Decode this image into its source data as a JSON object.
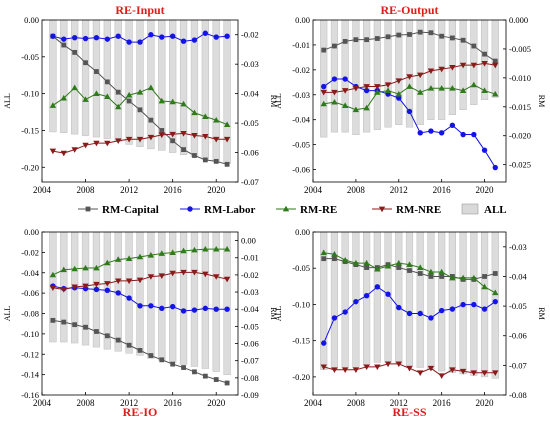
{
  "legend": {
    "items": [
      {
        "label": "RM-Capital",
        "color": "#555555",
        "marker": "square"
      },
      {
        "label": "RM-Labor",
        "color": "#1414e6",
        "marker": "circle"
      },
      {
        "label": "RM-RE",
        "color": "#2f7a1a",
        "marker": "triangle-up"
      },
      {
        "label": "RM-NRE",
        "color": "#8b1a1a",
        "marker": "triangle-down"
      },
      {
        "label": "ALL",
        "color": "#d9d9d9",
        "marker": "box"
      }
    ]
  },
  "chart_data": [
    {
      "type": "bar",
      "title": "RE-Input",
      "title_color": "#e01b1b",
      "title_position": "top",
      "ylabel_left": "ALL",
      "ylabel_right": "RM",
      "years": [
        2005,
        2006,
        2007,
        2008,
        2009,
        2010,
        2011,
        2012,
        2013,
        2014,
        2015,
        2016,
        2017,
        2018,
        2019,
        2020,
        2021
      ],
      "x_ticks": [
        2004,
        2008,
        2012,
        2016,
        2020
      ],
      "xlim": [
        2004,
        2022
      ],
      "left_ylim": [
        -0.22,
        0.0
      ],
      "left_ticks": [
        0.0,
        -0.05,
        -0.1,
        -0.15,
        -0.2
      ],
      "right_ylim": [
        -0.07,
        -0.015
      ],
      "right_ticks": [
        -0.02,
        -0.03,
        -0.04,
        -0.05,
        -0.06,
        -0.07
      ],
      "bars": {
        "name": "ALL",
        "values": [
          -0.152,
          -0.153,
          -0.155,
          -0.157,
          -0.159,
          -0.161,
          -0.165,
          -0.169,
          -0.172,
          -0.175,
          -0.177,
          -0.18,
          -0.183,
          -0.186,
          -0.189,
          -0.192,
          -0.195
        ]
      },
      "series": [
        {
          "name": "RM-Capital",
          "values": [
            -0.0205,
            -0.0235,
            -0.026,
            -0.0295,
            -0.0325,
            -0.036,
            -0.0395,
            -0.0425,
            -0.0455,
            -0.049,
            -0.0525,
            -0.056,
            -0.059,
            -0.061,
            -0.0625,
            -0.063,
            -0.064
          ]
        },
        {
          "name": "RM-Labor",
          "values": [
            -0.0205,
            -0.0215,
            -0.021,
            -0.0213,
            -0.021,
            -0.0215,
            -0.0205,
            -0.0225,
            -0.0225,
            -0.02,
            -0.0208,
            -0.0205,
            -0.0222,
            -0.0218,
            -0.0195,
            -0.0208,
            -0.0205
          ]
        },
        {
          "name": "RM-RE",
          "values": [
            -0.044,
            -0.0415,
            -0.038,
            -0.042,
            -0.04,
            -0.041,
            -0.0445,
            -0.0405,
            -0.0395,
            -0.038,
            -0.0425,
            -0.0428,
            -0.0435,
            -0.0465,
            -0.0478,
            -0.049,
            -0.0505
          ]
        },
        {
          "name": "RM-NRE",
          "values": [
            -0.0595,
            -0.0602,
            -0.059,
            -0.0575,
            -0.0568,
            -0.0568,
            -0.056,
            -0.0555,
            -0.0555,
            -0.0548,
            -0.054,
            -0.0538,
            -0.0535,
            -0.0542,
            -0.0545,
            -0.0555,
            -0.0555
          ]
        }
      ]
    },
    {
      "type": "bar",
      "title": "RE-Output",
      "title_color": "#e01b1b",
      "title_position": "top",
      "ylabel_left": "ALL",
      "ylabel_right": "RM",
      "years": [
        2005,
        2006,
        2007,
        2008,
        2009,
        2010,
        2011,
        2012,
        2013,
        2014,
        2015,
        2016,
        2017,
        2018,
        2019,
        2020,
        2021
      ],
      "x_ticks": [
        2004,
        2008,
        2012,
        2016,
        2020
      ],
      "xlim": [
        2004,
        2022
      ],
      "left_ylim": [
        -0.065,
        0.0
      ],
      "left_ticks": [
        0.0,
        -0.01,
        -0.02,
        -0.03,
        -0.04,
        -0.05,
        -0.06
      ],
      "right_ylim": [
        -0.028,
        0.0
      ],
      "right_ticks": [
        0.0,
        -0.005,
        -0.01,
        -0.015,
        -0.02,
        -0.025
      ],
      "bars": {
        "name": "ALL",
        "values": [
          -0.047,
          -0.045,
          -0.045,
          -0.046,
          -0.045,
          -0.044,
          -0.043,
          -0.042,
          -0.043,
          -0.042,
          -0.04,
          -0.04,
          -0.038,
          -0.036,
          -0.034,
          -0.032,
          -0.031
        ]
      },
      "series": [
        {
          "name": "RM-Capital",
          "values": [
            -0.0052,
            -0.0045,
            -0.0037,
            -0.0034,
            -0.0034,
            -0.0032,
            -0.0029,
            -0.0026,
            -0.0025,
            -0.0021,
            -0.0022,
            -0.0028,
            -0.0031,
            -0.0035,
            -0.0045,
            -0.0059,
            -0.0071
          ]
        },
        {
          "name": "RM-Labor",
          "values": [
            -0.0115,
            -0.0102,
            -0.0102,
            -0.0115,
            -0.0122,
            -0.0122,
            -0.0128,
            -0.0135,
            -0.0158,
            -0.0195,
            -0.0192,
            -0.0195,
            -0.0182,
            -0.0198,
            -0.0198,
            -0.0225,
            -0.0255
          ]
        },
        {
          "name": "RM-RE",
          "values": [
            -0.0145,
            -0.0142,
            -0.0148,
            -0.0155,
            -0.0152,
            -0.0125,
            -0.0122,
            -0.0128,
            -0.0115,
            -0.0125,
            -0.0118,
            -0.0118,
            -0.0118,
            -0.0122,
            -0.0112,
            -0.0122,
            -0.0128
          ]
        },
        {
          "name": "RM-NRE",
          "values": [
            -0.0125,
            -0.0125,
            -0.0122,
            -0.0118,
            -0.0115,
            -0.0115,
            -0.0112,
            -0.0105,
            -0.0098,
            -0.0095,
            -0.0088,
            -0.0085,
            -0.0082,
            -0.0078,
            -0.0078,
            -0.0075,
            -0.0078
          ]
        }
      ]
    },
    {
      "type": "bar",
      "title": "RE-IO",
      "title_color": "#e01b1b",
      "title_position": "bottom",
      "ylabel_left": "ALL",
      "ylabel_right": "RM",
      "years": [
        2005,
        2006,
        2007,
        2008,
        2009,
        2010,
        2011,
        2012,
        2013,
        2014,
        2015,
        2016,
        2017,
        2018,
        2019,
        2020,
        2021
      ],
      "x_ticks": [
        2004,
        2008,
        2012,
        2016,
        2020
      ],
      "xlim": [
        2004,
        2022
      ],
      "left_ylim": [
        -0.16,
        0.0
      ],
      "left_ticks": [
        0.0,
        -0.02,
        -0.04,
        -0.06,
        -0.08,
        -0.1,
        -0.12,
        -0.14,
        -0.16
      ],
      "right_ylim": [
        -0.09,
        0.005
      ],
      "right_ticks": [
        0.0,
        -0.01,
        -0.02,
        -0.03,
        -0.04,
        -0.05,
        -0.06,
        -0.07,
        -0.08,
        -0.09
      ],
      "bars": {
        "name": "ALL",
        "values": [
          -0.108,
          -0.108,
          -0.109,
          -0.111,
          -0.113,
          -0.115,
          -0.117,
          -0.119,
          -0.121,
          -0.124,
          -0.126,
          -0.128,
          -0.13,
          -0.132,
          -0.134,
          -0.137,
          -0.14
        ]
      },
      "series": [
        {
          "name": "RM-Capital",
          "values": [
            -0.0465,
            -0.0475,
            -0.049,
            -0.0505,
            -0.053,
            -0.0555,
            -0.058,
            -0.061,
            -0.064,
            -0.067,
            -0.0695,
            -0.072,
            -0.074,
            -0.0765,
            -0.079,
            -0.081,
            -0.083
          ]
        },
        {
          "name": "RM-Labor",
          "values": [
            -0.0265,
            -0.028,
            -0.0275,
            -0.028,
            -0.0285,
            -0.029,
            -0.0305,
            -0.0335,
            -0.038,
            -0.038,
            -0.0395,
            -0.0385,
            -0.041,
            -0.0405,
            -0.0395,
            -0.04,
            -0.04
          ]
        },
        {
          "name": "RM-RE",
          "values": [
            -0.02,
            -0.017,
            -0.0165,
            -0.016,
            -0.016,
            -0.013,
            -0.011,
            -0.0105,
            -0.0095,
            -0.0085,
            -0.0075,
            -0.007,
            -0.006,
            -0.0055,
            -0.005,
            -0.005,
            -0.005
          ]
        },
        {
          "name": "RM-NRE",
          "values": [
            -0.0275,
            -0.0285,
            -0.027,
            -0.0265,
            -0.0255,
            -0.025,
            -0.0235,
            -0.0235,
            -0.023,
            -0.021,
            -0.0205,
            -0.019,
            -0.0185,
            -0.0185,
            -0.0195,
            -0.021,
            -0.0225
          ]
        }
      ]
    },
    {
      "type": "bar",
      "title": "RE-SS",
      "title_color": "#e01b1b",
      "title_position": "bottom",
      "ylabel_left": "ALL",
      "ylabel_right": "RM",
      "years": [
        2005,
        2006,
        2007,
        2008,
        2009,
        2010,
        2011,
        2012,
        2013,
        2014,
        2015,
        2016,
        2017,
        2018,
        2019,
        2020,
        2021
      ],
      "x_ticks": [
        2004,
        2008,
        2012,
        2016,
        2020
      ],
      "xlim": [
        2004,
        2022
      ],
      "left_ylim": [
        -0.225,
        0.0
      ],
      "left_ticks": [
        0.0,
        -0.05,
        -0.1,
        -0.15,
        -0.2
      ],
      "right_ylim": [
        -0.08,
        -0.025
      ],
      "right_ticks": [
        -0.03,
        -0.04,
        -0.05,
        -0.06,
        -0.07,
        -0.08
      ],
      "bars": {
        "name": "ALL",
        "values": [
          -0.19,
          -0.19,
          -0.188,
          -0.187,
          -0.184,
          -0.18,
          -0.18,
          -0.182,
          -0.185,
          -0.187,
          -0.19,
          -0.192,
          -0.194,
          -0.196,
          -0.198,
          -0.2,
          -0.202
        ]
      },
      "series": [
        {
          "name": "RM-Capital",
          "values": [
            -0.034,
            -0.034,
            -0.035,
            -0.036,
            -0.037,
            -0.037,
            -0.036,
            -0.037,
            -0.038,
            -0.039,
            -0.04,
            -0.04,
            -0.04,
            -0.041,
            -0.041,
            -0.04,
            -0.039
          ]
        },
        {
          "name": "RM-Labor",
          "values": [
            -0.0625,
            -0.054,
            -0.052,
            -0.0485,
            -0.0465,
            -0.0435,
            -0.046,
            -0.0505,
            -0.0525,
            -0.0525,
            -0.054,
            -0.0515,
            -0.051,
            -0.0495,
            -0.0495,
            -0.051,
            -0.0485
          ]
        },
        {
          "name": "RM-RE",
          "values": [
            -0.032,
            -0.0325,
            -0.0345,
            -0.0355,
            -0.0355,
            -0.0375,
            -0.0365,
            -0.0355,
            -0.036,
            -0.037,
            -0.0385,
            -0.0385,
            -0.0405,
            -0.0405,
            -0.0405,
            -0.0435,
            -0.0455
          ]
        },
        {
          "name": "RM-NRE",
          "values": [
            -0.0705,
            -0.0715,
            -0.0715,
            -0.0715,
            -0.0705,
            -0.0705,
            -0.0695,
            -0.0695,
            -0.071,
            -0.0725,
            -0.071,
            -0.0735,
            -0.0715,
            -0.072,
            -0.0725,
            -0.0725,
            -0.0725
          ]
        }
      ]
    }
  ]
}
